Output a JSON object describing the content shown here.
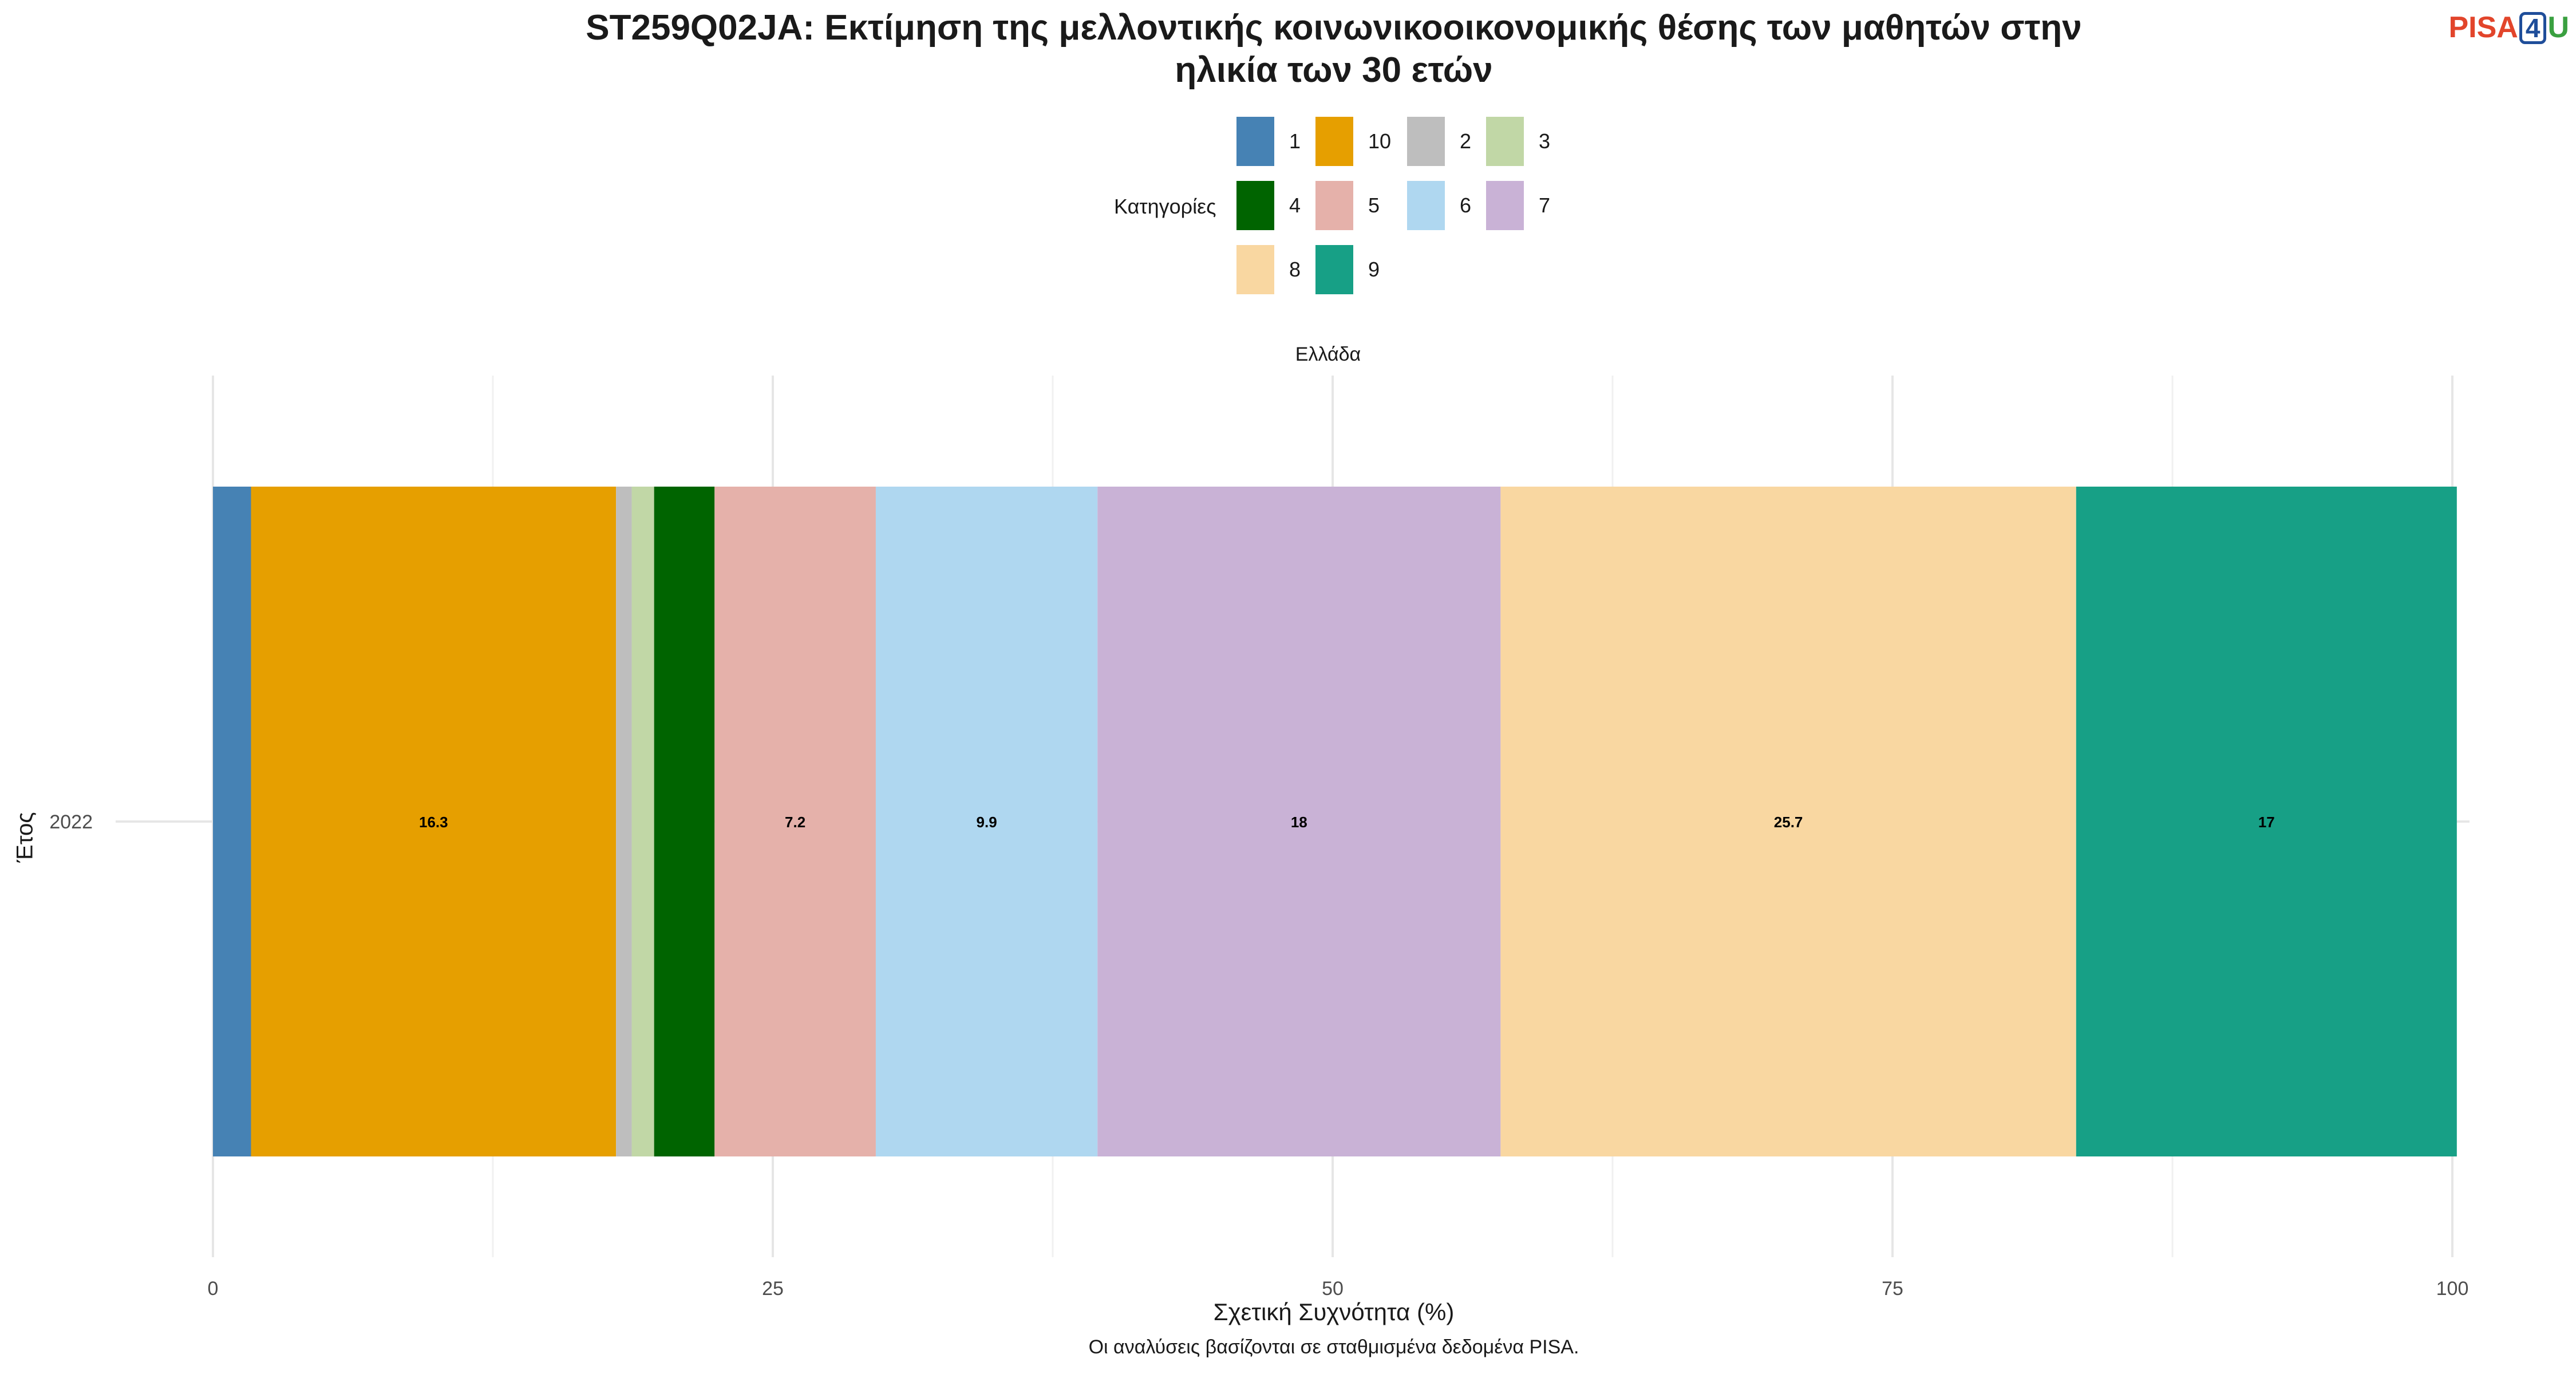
{
  "title_line1": "ST259Q02JA: Εκτίμηση της μελλοντικής κοινωνικοοικονομικής θέσης των μαθητών στην",
  "title_line2": "ηλικία των 30 ετών",
  "logo": {
    "pisa": "PISA",
    "four": "4",
    "u": "U"
  },
  "legend": {
    "title": "Κατηγορίες",
    "items": [
      {
        "label": "1",
        "color": "#4682B4"
      },
      {
        "label": "10",
        "color": "#E69F00"
      },
      {
        "label": "2",
        "color": "#BEBEBE"
      },
      {
        "label": "3",
        "color": "#C1D7A6"
      },
      {
        "label": "4",
        "color": "#006400"
      },
      {
        "label": "5",
        "color": "#E5B1AA"
      },
      {
        "label": "6",
        "color": "#AFD7F0"
      },
      {
        "label": "7",
        "color": "#C9B2D6"
      },
      {
        "label": "8",
        "color": "#F9D7A1"
      },
      {
        "label": "9",
        "color": "#17A086"
      }
    ]
  },
  "facet_label": "Ελλάδα",
  "caption": "Οι αναλύσεις βασίζονται σε σταθμισμένα δεδομένα PISA.",
  "chart_data": {
    "type": "bar",
    "orientation": "horizontal",
    "stacked": true,
    "categories": [
      "2022"
    ],
    "xlabel": "Σχετική Συχνότητα (%)",
    "ylabel": "Έτος",
    "xlim": [
      0,
      100
    ],
    "xticks": [
      0,
      25,
      50,
      75,
      100
    ],
    "grid": true,
    "legend_position": "top",
    "series": [
      {
        "name": "1",
        "values": [
          1.7
        ],
        "color": "#4682B4",
        "label": ""
      },
      {
        "name": "10",
        "values": [
          16.3
        ],
        "color": "#E69F00",
        "label": "16.3"
      },
      {
        "name": "2",
        "values": [
          0.7
        ],
        "color": "#BEBEBE",
        "label": ""
      },
      {
        "name": "3",
        "values": [
          1.0
        ],
        "color": "#C1D7A6",
        "label": ""
      },
      {
        "name": "4",
        "values": [
          2.7
        ],
        "color": "#006400",
        "label": ""
      },
      {
        "name": "5",
        "values": [
          7.2
        ],
        "color": "#E5B1AA",
        "label": "7.2"
      },
      {
        "name": "6",
        "values": [
          9.9
        ],
        "color": "#AFD7F0",
        "label": "9.9"
      },
      {
        "name": "7",
        "values": [
          18
        ],
        "color": "#C9B2D6",
        "label": "18"
      },
      {
        "name": "8",
        "values": [
          25.7
        ],
        "color": "#F9D7A1",
        "label": "25.7"
      },
      {
        "name": "9",
        "values": [
          17
        ],
        "color": "#17A086",
        "label": "17"
      }
    ]
  }
}
